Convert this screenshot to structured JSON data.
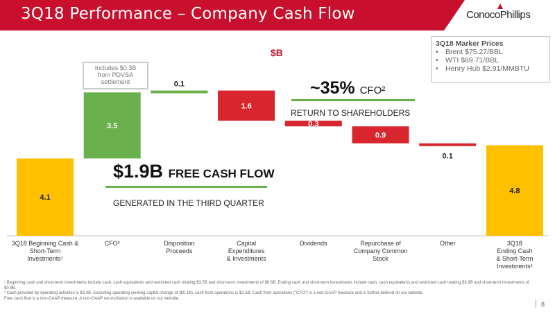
{
  "title": "3Q18 Performance – Company Cash Flow",
  "logo_text": "ConocoPhillips",
  "unit_label": "$B",
  "marker_prices": {
    "title": "3Q18 Marker Prices",
    "items": [
      "Brent $75.27/BBL",
      "WTI $69.71/BBL",
      "Henry Hub $2.91/MMBTU"
    ]
  },
  "cfo_note": [
    "Includes $0.3B",
    "from PDVSA",
    "settlement"
  ],
  "callout_fcf": {
    "big": "$1.9B",
    "small": "FREE CASH FLOW",
    "sub": "GENERATED IN THE THIRD QUARTER"
  },
  "callout_cfo": {
    "big": "~35%",
    "small": "CFO²",
    "sub": "RETURN TO SHAREHOLDERS"
  },
  "chart_data": {
    "type": "bar",
    "subtype": "waterfall",
    "categories": [
      [
        "3Q18 Beginning Cash &",
        "Short-Term",
        "Investments¹"
      ],
      [
        "CFO²"
      ],
      [
        "Disposition",
        "Proceeds"
      ],
      [
        "Capital",
        "Expenditures",
        "& Investments"
      ],
      [
        "Dividends"
      ],
      [
        "Repurchase of",
        "Company Common",
        "Stock"
      ],
      [
        "Other"
      ],
      [
        "3Q18",
        "Ending Cash",
        "& Short-Term",
        "Investments¹"
      ]
    ],
    "values": [
      4.1,
      3.5,
      0.1,
      -1.6,
      -0.3,
      -0.9,
      -0.1,
      4.8
    ],
    "labels": [
      "4.1",
      "3.5",
      "0.1",
      "1.6",
      "0.3",
      "0.9",
      "0.1",
      "4.8"
    ],
    "kinds": [
      "total",
      "increase",
      "increase",
      "decrease",
      "decrease",
      "decrease",
      "decrease",
      "total"
    ],
    "colors": {
      "total": "#ffc000",
      "increase": "#6ab04c",
      "decrease": "#d9262e"
    }
  },
  "footnotes": [
    "¹ Beginning cash and short-term investments include cash, cash equivalents and restricted cash totaling $3.5B and short-term investments of $0.6B. Ending cash and short-term investments include cash, cash equivalents and restricted cash totaling $3.9B and short-term investments of $0.9B.",
    "² Cash provided by operating activities is $3.4B. Excluding operating working capital change of ($0.1B), cash from operations is $3.5B. Cash from operations (\"CFO\") is a non-GAAP measure and is further defined on our website.",
    "Free cash flow is a non-GAAP measure. A non-GAAP reconciliation is available on our website."
  ],
  "page_number": "8"
}
